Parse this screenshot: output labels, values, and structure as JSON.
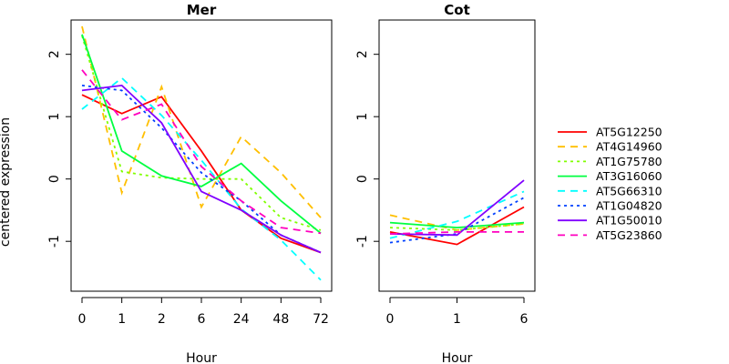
{
  "chart_data": {
    "type": "line",
    "ylabel": "centered expression",
    "ylim": [
      -1.8,
      2.55
    ],
    "yticks": [
      -1,
      0,
      1,
      2
    ],
    "legend": {
      "position": "right"
    },
    "series_styles": [
      {
        "name": "AT5G12250",
        "color": "#ff0000",
        "dash": "solid"
      },
      {
        "name": "AT4G14960",
        "color": "#ffbf00",
        "dash": "dashed"
      },
      {
        "name": "AT1G75780",
        "color": "#80ff00",
        "dash": "dotted"
      },
      {
        "name": "AT3G16060",
        "color": "#00ff40",
        "dash": "solid"
      },
      {
        "name": "AT5G66310",
        "color": "#00ffff",
        "dash": "dashed"
      },
      {
        "name": "AT1G04820",
        "color": "#0040ff",
        "dash": "dotted"
      },
      {
        "name": "AT1G50010",
        "color": "#8000ff",
        "dash": "solid"
      },
      {
        "name": "AT5G23860",
        "color": "#ff00bf",
        "dash": "dashed"
      }
    ],
    "panels": [
      {
        "title": "Mer",
        "xlabel": "Hour",
        "categories": [
          "0",
          "1",
          "2",
          "6",
          "24",
          "48",
          "72"
        ],
        "series": [
          {
            "name": "AT5G12250",
            "values": [
              1.35,
              1.05,
              1.32,
              0.45,
              -0.5,
              -0.95,
              -1.18
            ]
          },
          {
            "name": "AT4G14960",
            "values": [
              2.45,
              -0.22,
              1.48,
              -0.45,
              0.68,
              0.1,
              -0.62
            ]
          },
          {
            "name": "AT1G75780",
            "values": [
              2.3,
              0.12,
              0.02,
              0.0,
              0.0,
              -0.62,
              -0.82
            ]
          },
          {
            "name": "AT3G16060",
            "values": [
              2.32,
              0.45,
              0.05,
              -0.12,
              0.25,
              -0.35,
              -0.87
            ]
          },
          {
            "name": "AT5G66310",
            "values": [
              1.12,
              1.62,
              1.02,
              0.3,
              -0.48,
              -0.98,
              -1.62
            ]
          },
          {
            "name": "AT1G04820",
            "values": [
              1.5,
              1.42,
              0.82,
              0.1,
              -0.35,
              -0.9,
              -1.18
            ]
          },
          {
            "name": "AT1G50010",
            "values": [
              1.42,
              1.5,
              0.9,
              -0.2,
              -0.5,
              -0.9,
              -1.18
            ]
          },
          {
            "name": "AT5G23860",
            "values": [
              1.75,
              0.95,
              1.2,
              0.2,
              -0.35,
              -0.78,
              -0.87
            ]
          }
        ]
      },
      {
        "title": "Cot",
        "xlabel": "Hour",
        "categories": [
          "0",
          "1",
          "6"
        ],
        "series": [
          {
            "name": "AT5G12250",
            "values": [
              -0.85,
              -1.05,
              -0.45
            ]
          },
          {
            "name": "AT4G14960",
            "values": [
              -0.58,
              -0.82,
              -0.72
            ]
          },
          {
            "name": "AT1G75780",
            "values": [
              -0.78,
              -0.82,
              -0.72
            ]
          },
          {
            "name": "AT3G16060",
            "values": [
              -0.7,
              -0.78,
              -0.7
            ]
          },
          {
            "name": "AT5G66310",
            "values": [
              -0.95,
              -0.68,
              -0.2
            ]
          },
          {
            "name": "AT1G04820",
            "values": [
              -1.02,
              -0.88,
              -0.3
            ]
          },
          {
            "name": "AT1G50010",
            "values": [
              -0.88,
              -0.9,
              -0.02
            ]
          },
          {
            "name": "AT5G23860",
            "values": [
              -0.88,
              -0.85,
              -0.85
            ]
          }
        ]
      }
    ]
  }
}
